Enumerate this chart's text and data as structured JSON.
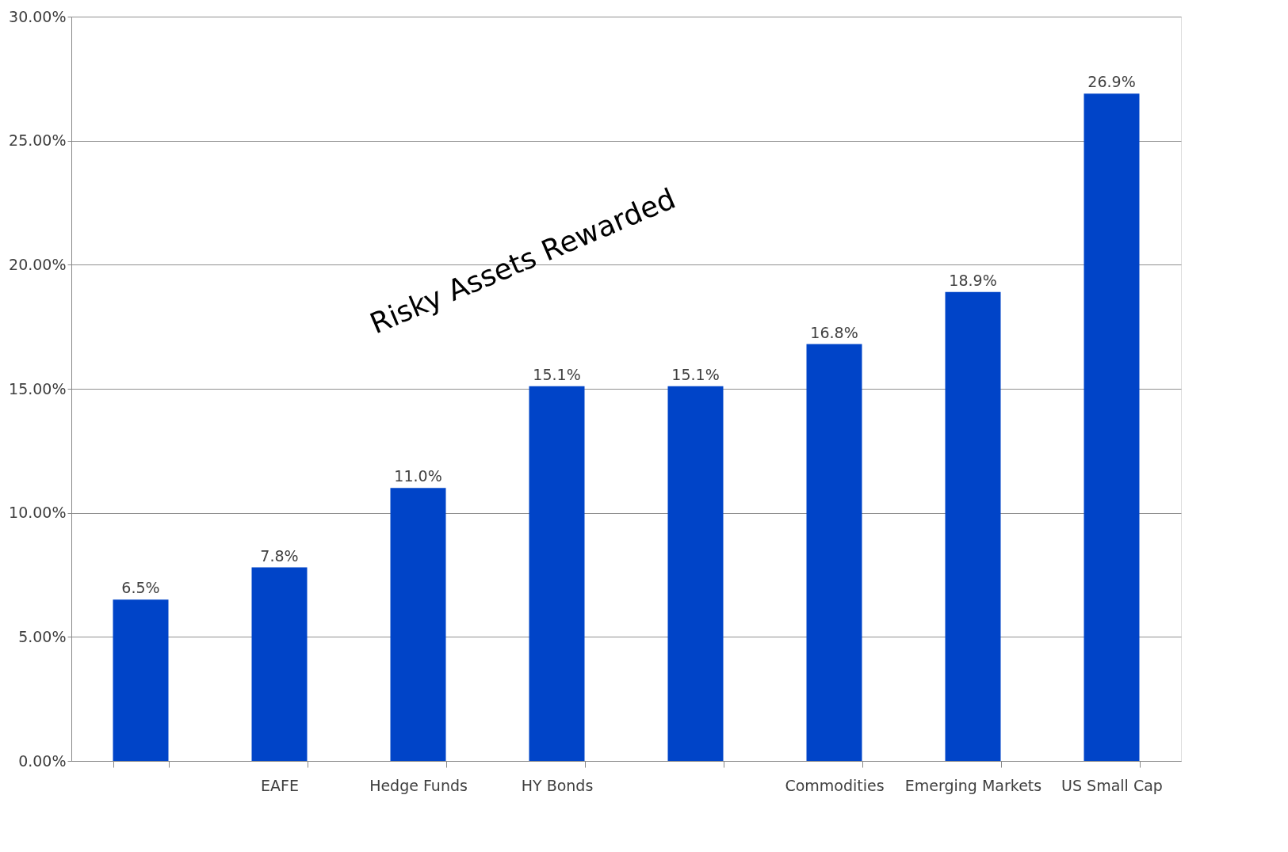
{
  "chart_data": {
    "type": "bar",
    "categories": [
      null,
      "EAFE",
      "Hedge Funds",
      "HY Bonds",
      null,
      "Commodities",
      "Emerging Markets",
      "US Small Cap"
    ],
    "values": [
      6.5,
      7.8,
      11.0,
      15.1,
      15.1,
      16.8,
      18.9,
      26.9
    ],
    "value_labels": [
      "6.5%",
      "7.8%",
      "11.0%",
      "15.1%",
      "15.1%",
      "16.8%",
      "18.9%",
      "26.9%"
    ],
    "color": "#0044c8",
    "ylim": [
      0,
      30
    ],
    "yticks": [
      {
        "value": 0,
        "label": "0.00%"
      },
      {
        "value": 5,
        "label": "5.00%"
      },
      {
        "value": 10,
        "label": "10.00%"
      },
      {
        "value": 15,
        "label": "15.00%"
      },
      {
        "value": 20,
        "label": "20.00%"
      },
      {
        "value": 25,
        "label": "25.00%"
      },
      {
        "value": 30,
        "label": "30.00%"
      }
    ],
    "grid": "y",
    "annotations": [
      "Risky Assets Rewarded"
    ]
  }
}
